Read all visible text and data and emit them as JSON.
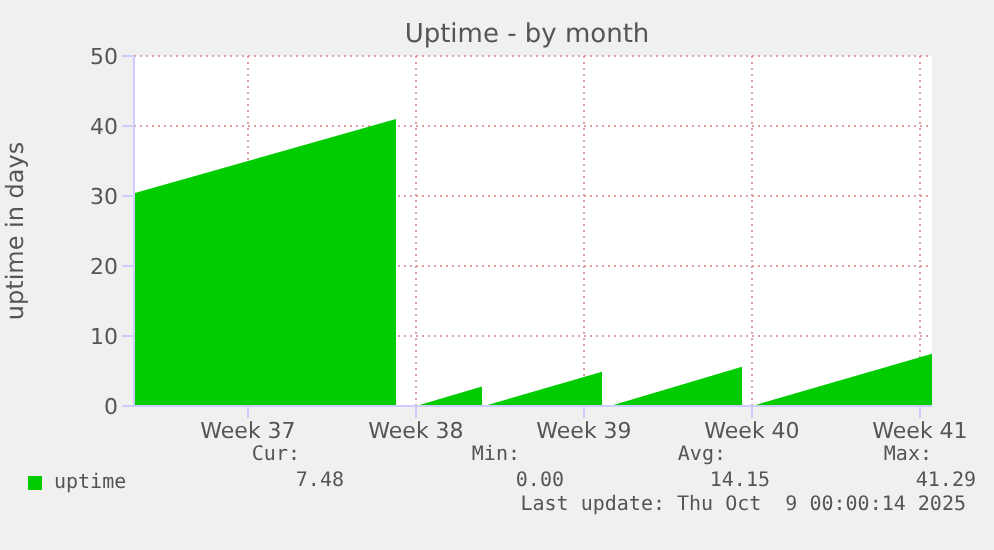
{
  "chart_data": {
    "type": "area",
    "title": "Uptime - by month",
    "ylabel": "uptime in days",
    "x": [
      "2025-09-05T18:00",
      "2025-09-16T16:00",
      "2025-09-16T16:00",
      "2025-09-17T12:00",
      "2025-09-20T06:00",
      "2025-09-20T06:00",
      "2025-09-20T08:00",
      "2025-09-25T06:00",
      "2025-09-25T06:00",
      "2025-09-25T14:00",
      "2025-10-01T02:00",
      "2025-10-01T02:00",
      "2025-10-01T12:00",
      "2025-10-09T00:00"
    ],
    "series": [
      {
        "name": "uptime",
        "color": "#00cc00",
        "values": [
          30.4,
          41.0,
          0,
          0,
          2.8,
          0,
          0,
          4.9,
          0,
          0,
          5.6,
          0,
          0,
          7.48
        ]
      }
    ],
    "xlim": [
      "2025-09-05T18:00",
      "2025-10-09T00:00"
    ],
    "xticks": [
      {
        "value": "2025-09-10T12:00",
        "label": "Week 37"
      },
      {
        "value": "2025-09-17T12:00",
        "label": "Week 38"
      },
      {
        "value": "2025-09-24T12:00",
        "label": "Week 39"
      },
      {
        "value": "2025-10-01T12:00",
        "label": "Week 40"
      },
      {
        "value": "2025-10-08T12:00",
        "label": "Week 41"
      }
    ],
    "ylim": [
      0,
      50
    ],
    "yticks": [
      0,
      10,
      20,
      30,
      40,
      50
    ],
    "grid": true,
    "legend": "bottom left",
    "marker": "none",
    "annotations": [
      "Cur:",
      "Min:",
      "Avg:",
      "Max:",
      "7.48",
      "0.00",
      "14.15",
      "41.29",
      "Last update: Thu Oct  9 00:00:14 2025"
    ]
  }
}
